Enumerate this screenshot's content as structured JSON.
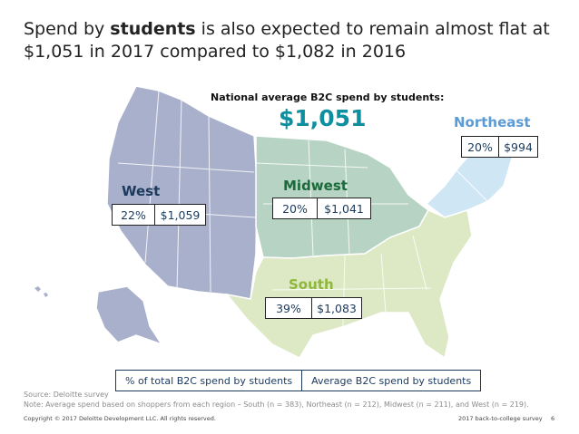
{
  "title": {
    "pre": "Spend by ",
    "highlight": "students",
    "post": " is also expected to remain almost flat at $1,051 in 2017 compared to $1,082 in 2016"
  },
  "national": {
    "label": "National average B2C spend by students:",
    "value": "$1,051"
  },
  "regions": {
    "west": {
      "name": "West",
      "pct": "22%",
      "spend": "$1,059",
      "color": "#1b3a5c"
    },
    "midwest": {
      "name": "Midwest",
      "pct": "20%",
      "spend": "$1,041",
      "color": "#1a6b3a"
    },
    "northeast": {
      "name": "Northeast",
      "pct": "20%",
      "spend": "$994",
      "color": "#5b9bd5"
    },
    "south": {
      "name": "South",
      "pct": "39%",
      "spend": "$1,083",
      "color": "#8fb83a"
    }
  },
  "map_colors": {
    "west": "#a9b0cc",
    "midwest": "#b7d3c4",
    "northeast": "#cfe7f5",
    "south": "#dde8c4"
  },
  "legend": {
    "pct_label": "% of total B2C spend by students",
    "spend_label": "Average B2C spend by students"
  },
  "footer": {
    "source": "Source: Deloitte survey",
    "note": "Note:  Average spend based on shoppers from each region – South (n = 383), Northeast (n = 212), Midwest (n = 211), and West (n = 219).",
    "copyright": "Copyright © 2017 Deloitte Development LLC. All rights reserved.",
    "survey": "2017 back-to-college survey",
    "page": "6"
  }
}
